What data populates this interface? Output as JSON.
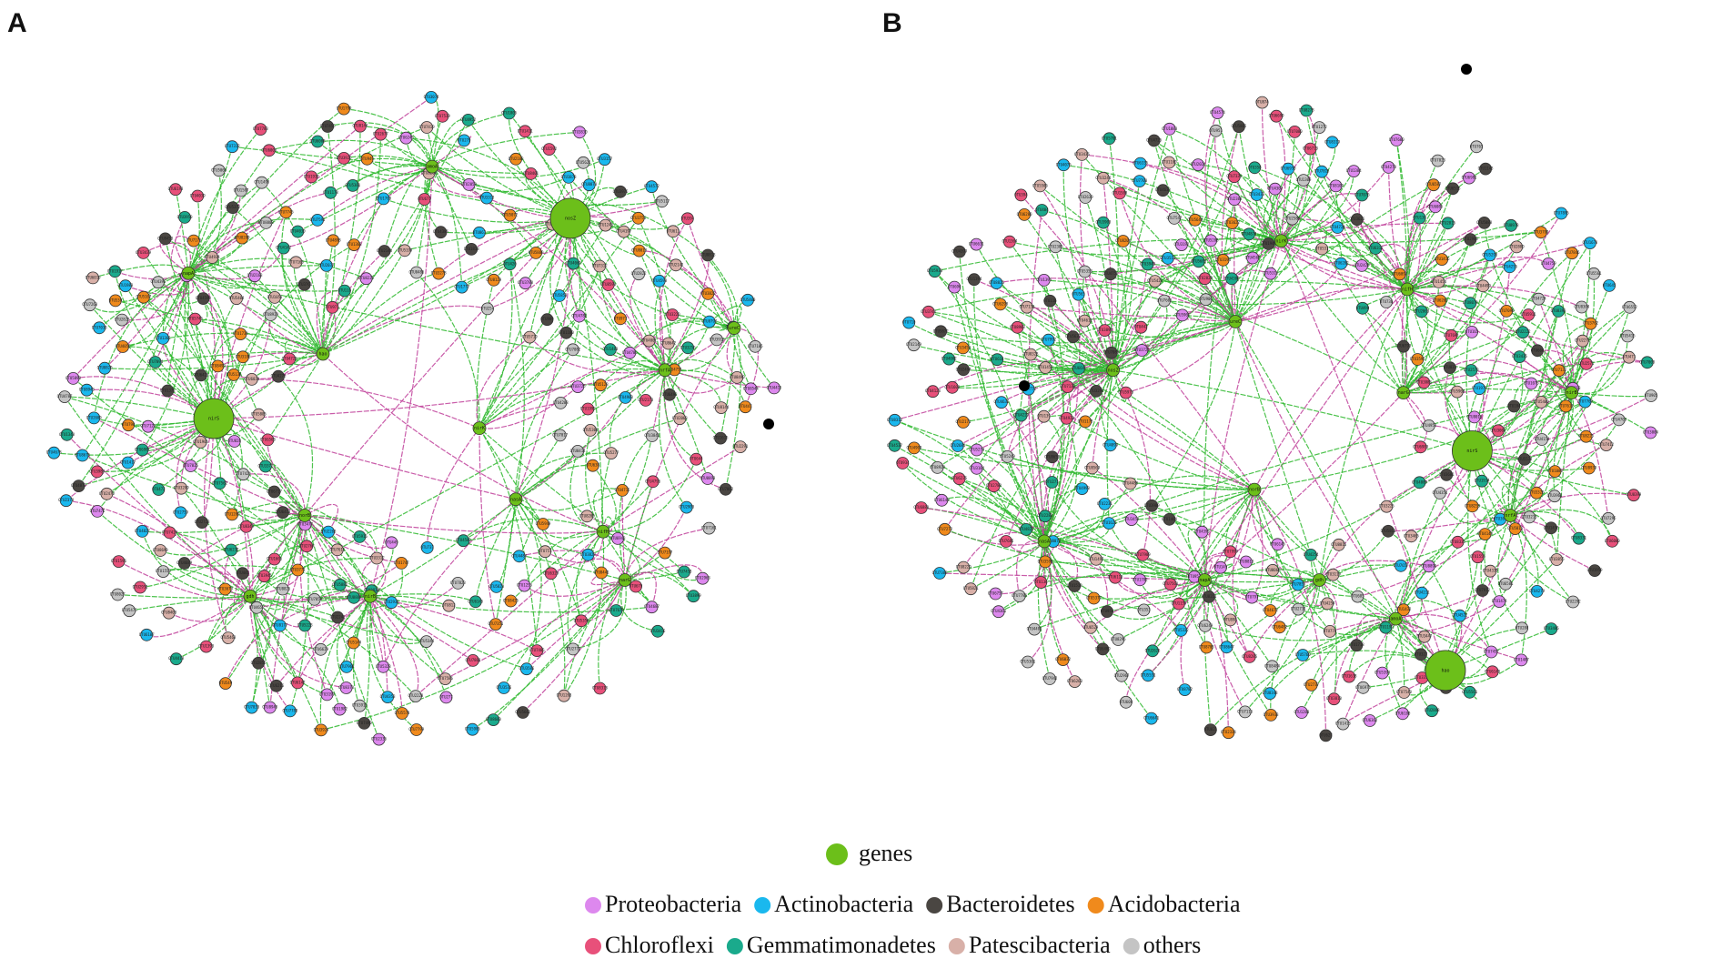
{
  "panels": [
    {
      "letter": "A",
      "gene_labels": [
        "nosZ",
        "nirS",
        "nirK",
        "narG",
        "norB",
        "amoA",
        "napA",
        "nrfA",
        "nirB",
        "nasA",
        "gdh",
        "ureC",
        "nifH",
        "hao",
        "nxrA",
        "nosC"
      ]
    },
    {
      "letter": "B",
      "gene_labels": [
        "nosZ",
        "nirS",
        "nirK",
        "narG",
        "norB",
        "amoA",
        "napA",
        "nrfA",
        "nirB",
        "nasA",
        "gdh",
        "ureC",
        "nifH",
        "hao",
        "nxrA",
        "nosC"
      ]
    }
  ],
  "legend": {
    "genes": {
      "label": "genes",
      "color": "#6cbf1a"
    },
    "phyla": [
      {
        "label": "Proteobacteria",
        "color": "#dd88ee"
      },
      {
        "label": "Actinobacteria",
        "color": "#1ab8ee"
      },
      {
        "label": "Bacteroidetes",
        "color": "#4a4642"
      },
      {
        "label": "Acidobacteria",
        "color": "#f08a1c"
      },
      {
        "label": "Chloroflexi",
        "color": "#e8507a"
      },
      {
        "label": "Gemmatimonadetes",
        "color": "#1aaa8c"
      },
      {
        "label": "Patescibacteria",
        "color": "#d8b0a8"
      },
      {
        "label": "others",
        "color": "#c4c4c4"
      }
    ]
  },
  "edge_colors": {
    "positive": "#2eb82e",
    "negative": "#c0409a"
  },
  "otu_label_prefix": "OTU"
}
